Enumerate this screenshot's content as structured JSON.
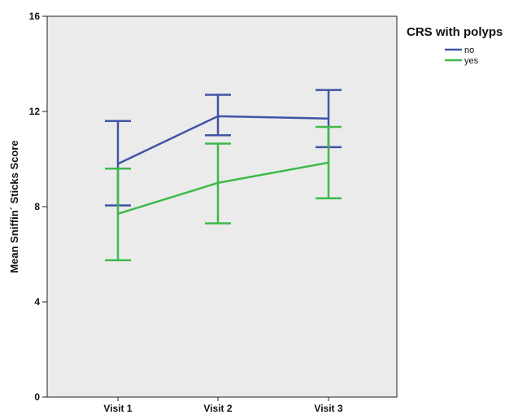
{
  "chart_data": {
    "type": "line",
    "title": "",
    "xlabel": "",
    "ylabel": "Mean Sniffin´ Sticks Score",
    "categories": [
      "Visit 1",
      "Visit 2",
      "Visit 3"
    ],
    "ylim": [
      0,
      16
    ],
    "yticks": [
      0,
      4,
      8,
      12,
      16
    ],
    "grid": false,
    "legend": {
      "title": "CRS with polyps",
      "position": "top-right outside"
    },
    "error_bars": true,
    "series": [
      {
        "name": "no",
        "color": "#3f55a5",
        "values": [
          9.8,
          11.8,
          11.7
        ],
        "lower": [
          8.05,
          11.0,
          10.5
        ],
        "upper": [
          11.6,
          12.7,
          12.9
        ]
      },
      {
        "name": "yes",
        "color": "#3dba4a",
        "values": [
          7.7,
          9.0,
          9.85
        ],
        "lower": [
          5.75,
          7.3,
          8.35
        ],
        "upper": [
          9.6,
          10.65,
          11.35
        ]
      }
    ]
  }
}
